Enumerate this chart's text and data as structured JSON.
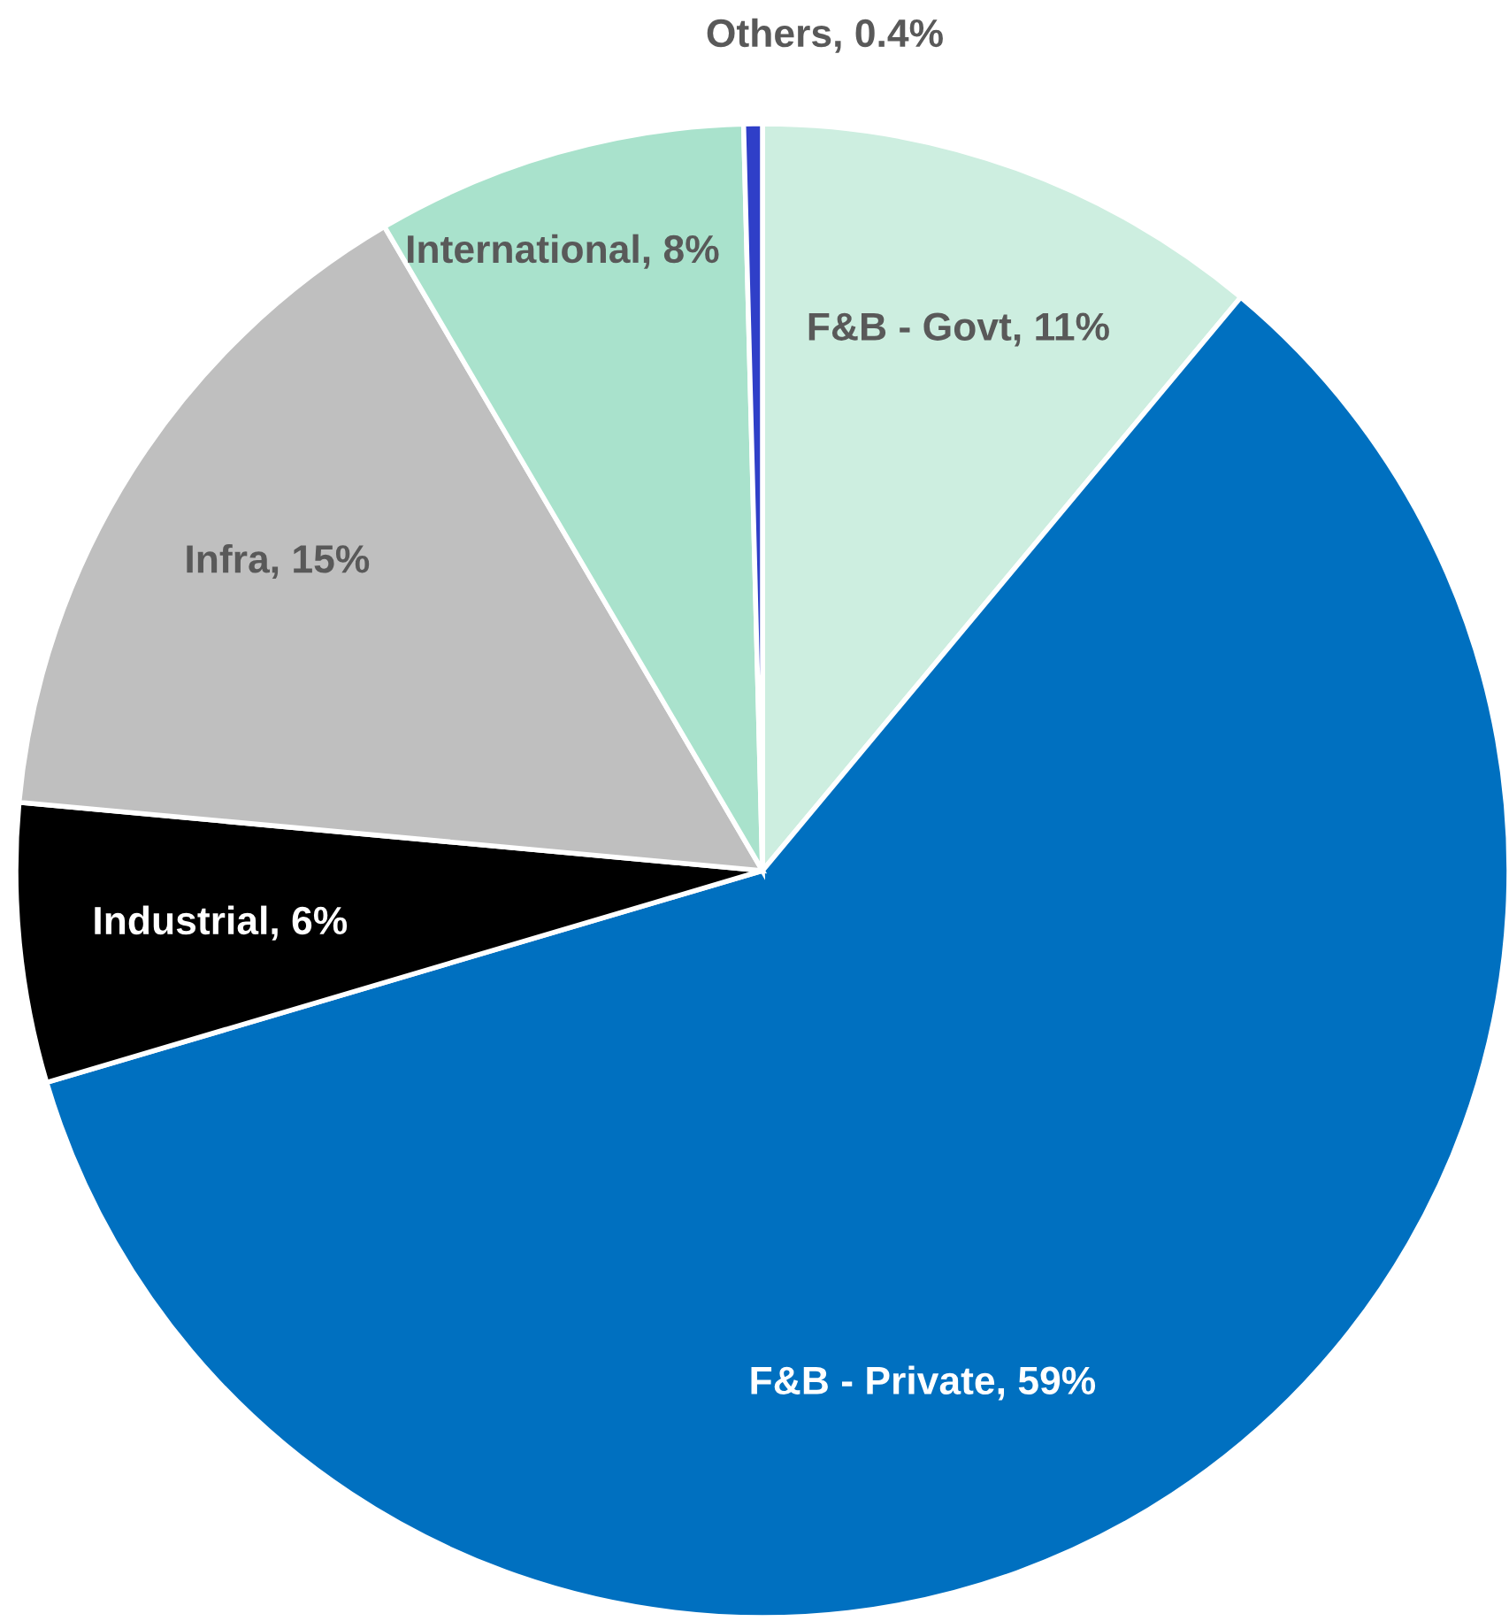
{
  "chart_data": {
    "type": "pie",
    "categories": [
      "F&B - Govt",
      "F&B - Private",
      "Industrial",
      "Infra",
      "International",
      "Others"
    ],
    "values": [
      11,
      59,
      6,
      15,
      8,
      0.4
    ],
    "value_labels": [
      "11%",
      "59%",
      "6%",
      "15%",
      "8%",
      "0.4%"
    ],
    "colors": [
      "#cdeee0",
      "#0070c0",
      "#000000",
      "#bfbfbf",
      "#a9e2cc",
      "#2f3fc8"
    ]
  }
}
